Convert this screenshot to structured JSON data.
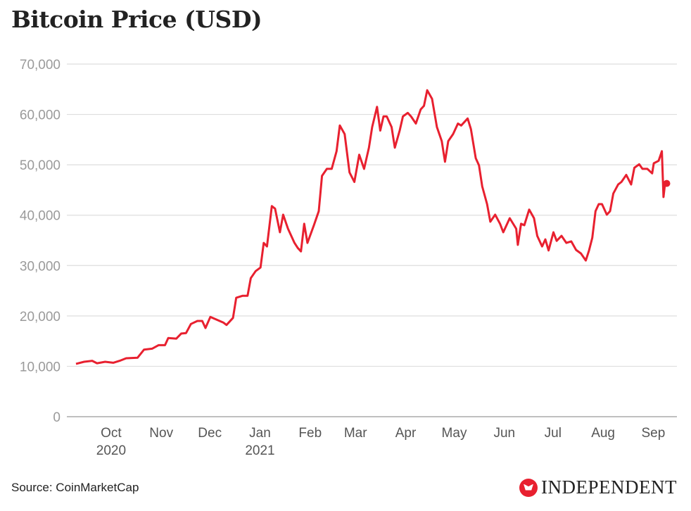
{
  "chart_data": {
    "type": "line",
    "title": "Bitcoin Price (USD)",
    "xlabel": "",
    "ylabel": "",
    "x_unit": "days since 2020-09-08",
    "ylim": [
      0,
      70000
    ],
    "yticks": [
      0,
      10000,
      20000,
      30000,
      40000,
      50000,
      60000,
      70000
    ],
    "ytick_labels": [
      "0",
      "10,000",
      "20,000",
      "30,000",
      "40,000",
      "50,000",
      "60,000",
      "70,000"
    ],
    "xticks": [
      {
        "day": 23,
        "label": "Oct",
        "sub": "2020"
      },
      {
        "day": 54,
        "label": "Nov"
      },
      {
        "day": 84,
        "label": "Dec"
      },
      {
        "day": 115,
        "label": "Jan",
        "sub": "2021"
      },
      {
        "day": 146,
        "label": "Feb"
      },
      {
        "day": 174,
        "label": "Mar"
      },
      {
        "day": 205,
        "label": "Apr"
      },
      {
        "day": 235,
        "label": "May"
      },
      {
        "day": 266,
        "label": "Jun"
      },
      {
        "day": 296,
        "label": "Jul"
      },
      {
        "day": 327,
        "label": "Aug"
      },
      {
        "day": 358,
        "label": "Sep"
      }
    ],
    "grid": true,
    "series": [
      {
        "name": "Bitcoin Price (USD)",
        "color": "#e8202f",
        "points": [
          [
            0,
            10500
          ],
          [
            5,
            10900
          ],
          [
            10,
            11100
          ],
          [
            13,
            10600
          ],
          [
            18,
            10900
          ],
          [
            23,
            10700
          ],
          [
            27,
            11100
          ],
          [
            31,
            11600
          ],
          [
            38,
            11700
          ],
          [
            42,
            13300
          ],
          [
            47,
            13500
          ],
          [
            51,
            14200
          ],
          [
            55,
            14200
          ],
          [
            57,
            15600
          ],
          [
            62,
            15500
          ],
          [
            65,
            16500
          ],
          [
            68,
            16600
          ],
          [
            71,
            18400
          ],
          [
            75,
            19000
          ],
          [
            78,
            19000
          ],
          [
            80,
            17600
          ],
          [
            83,
            19800
          ],
          [
            88,
            19100
          ],
          [
            91,
            18700
          ],
          [
            93,
            18200
          ],
          [
            97,
            19600
          ],
          [
            99,
            23600
          ],
          [
            103,
            24000
          ],
          [
            106,
            24000
          ],
          [
            108,
            27500
          ],
          [
            111,
            28900
          ],
          [
            114,
            29600
          ],
          [
            116,
            34500
          ],
          [
            118,
            33800
          ],
          [
            121,
            41800
          ],
          [
            123,
            41300
          ],
          [
            126,
            36600
          ],
          [
            128,
            40100
          ],
          [
            131,
            37300
          ],
          [
            135,
            34500
          ],
          [
            137,
            33500
          ],
          [
            139,
            32800
          ],
          [
            141,
            38300
          ],
          [
            143,
            34500
          ],
          [
            147,
            38000
          ],
          [
            150,
            40800
          ],
          [
            152,
            47800
          ],
          [
            155,
            49200
          ],
          [
            158,
            49200
          ],
          [
            161,
            52700
          ],
          [
            163,
            57800
          ],
          [
            166,
            56100
          ],
          [
            169,
            48500
          ],
          [
            172,
            46600
          ],
          [
            175,
            52000
          ],
          [
            178,
            49200
          ],
          [
            181,
            53400
          ],
          [
            183,
            57500
          ],
          [
            186,
            61500
          ],
          [
            188,
            56800
          ],
          [
            190,
            59600
          ],
          [
            192,
            59600
          ],
          [
            195,
            57500
          ],
          [
            197,
            53400
          ],
          [
            200,
            56800
          ],
          [
            202,
            59600
          ],
          [
            205,
            60300
          ],
          [
            207,
            59600
          ],
          [
            210,
            58200
          ],
          [
            213,
            61000
          ],
          [
            215,
            61700
          ],
          [
            217,
            64800
          ],
          [
            220,
            63100
          ],
          [
            223,
            57500
          ],
          [
            226,
            54700
          ],
          [
            228,
            50600
          ],
          [
            230,
            54700
          ],
          [
            233,
            56100
          ],
          [
            236,
            58200
          ],
          [
            238,
            57800
          ],
          [
            242,
            59200
          ],
          [
            244,
            57100
          ],
          [
            247,
            51300
          ],
          [
            249,
            49900
          ],
          [
            251,
            45700
          ],
          [
            254,
            42200
          ],
          [
            256,
            38700
          ],
          [
            259,
            40100
          ],
          [
            262,
            38300
          ],
          [
            264,
            36600
          ],
          [
            266,
            38000
          ],
          [
            268,
            39400
          ],
          [
            272,
            37300
          ],
          [
            273,
            34100
          ],
          [
            275,
            38300
          ],
          [
            277,
            38000
          ],
          [
            280,
            41100
          ],
          [
            283,
            39400
          ],
          [
            285,
            35900
          ],
          [
            288,
            33800
          ],
          [
            290,
            35200
          ],
          [
            292,
            33000
          ],
          [
            295,
            36600
          ],
          [
            297,
            34900
          ],
          [
            300,
            35900
          ],
          [
            303,
            34500
          ],
          [
            306,
            34800
          ],
          [
            309,
            33100
          ],
          [
            312,
            32400
          ],
          [
            315,
            31000
          ],
          [
            317,
            33000
          ],
          [
            319,
            35500
          ],
          [
            321,
            40800
          ],
          [
            323,
            42200
          ],
          [
            325,
            42200
          ],
          [
            328,
            40100
          ],
          [
            330,
            40800
          ],
          [
            332,
            44300
          ],
          [
            335,
            46100
          ],
          [
            337,
            46600
          ],
          [
            340,
            48000
          ],
          [
            343,
            46100
          ],
          [
            345,
            49400
          ],
          [
            348,
            50100
          ],
          [
            350,
            49200
          ],
          [
            353,
            49200
          ],
          [
            356,
            48300
          ],
          [
            357,
            50300
          ],
          [
            360,
            50800
          ],
          [
            362,
            52700
          ],
          [
            363,
            43600
          ],
          [
            364,
            46400
          ],
          [
            365,
            46300
          ]
        ]
      }
    ],
    "source": "Source: CoinMarketCap",
    "publisher": "INDEPENDENT"
  }
}
